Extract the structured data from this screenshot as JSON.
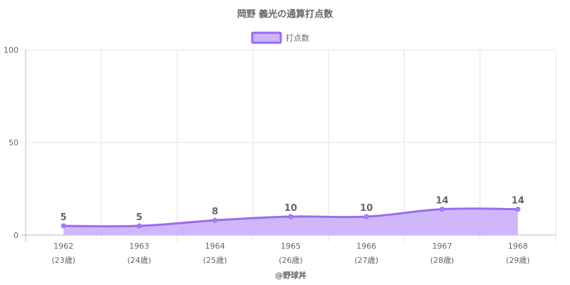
{
  "chart_data": {
    "type": "area",
    "title": "岡野 義光の通算打点数",
    "categories": [
      "1962",
      "1963",
      "1964",
      "1965",
      "1966",
      "1967",
      "1968"
    ],
    "category_sublabels": [
      "(23歳)",
      "(24歳)",
      "(25歳)",
      "(26歳)",
      "(27歳)",
      "(28歳)",
      "(29歳)"
    ],
    "series": [
      {
        "name": "打点数",
        "values": [
          5,
          5,
          8,
          10,
          10,
          14,
          14
        ]
      }
    ],
    "ylim": [
      0,
      100
    ],
    "yticks": [
      0,
      50,
      100
    ],
    "grid": true,
    "legend_position": "top",
    "colors": {
      "line": "#9b6bf0",
      "fill": "#cbb4fb",
      "point": "#a97ef7"
    },
    "credit": "@野球丼"
  }
}
